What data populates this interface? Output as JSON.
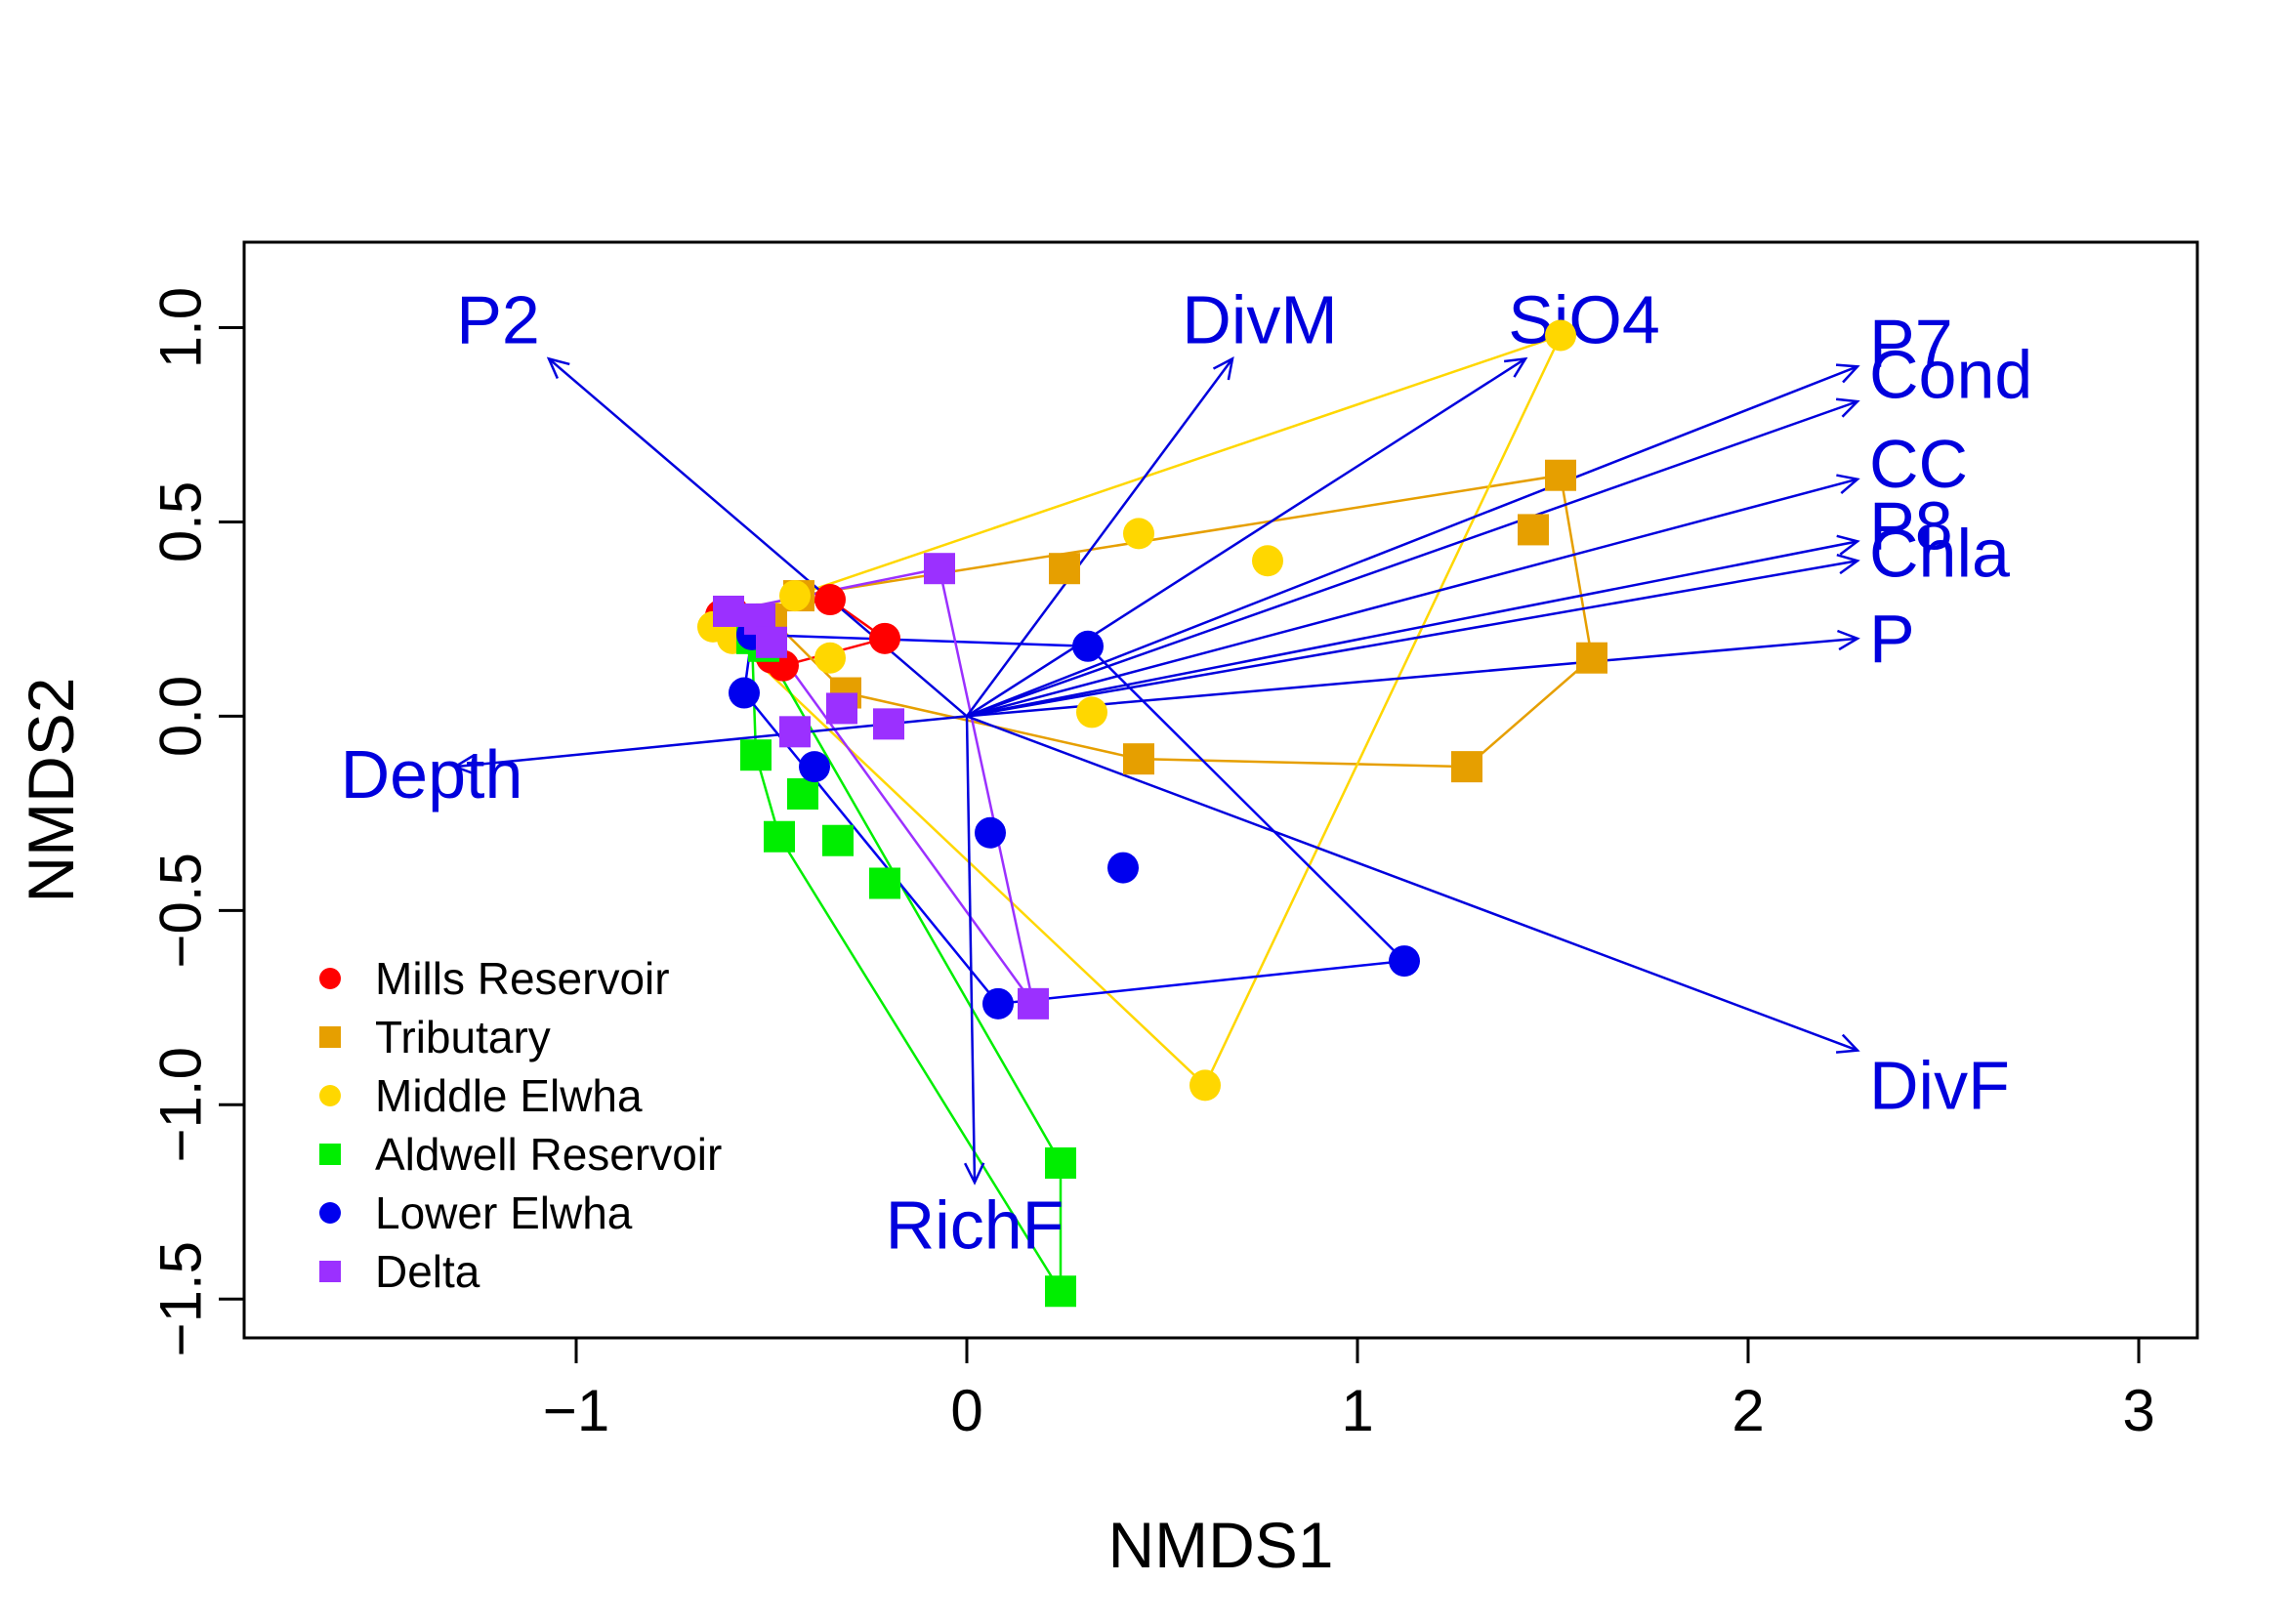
{
  "chart_data": {
    "type": "scatter",
    "title": "",
    "xlabel": "NMDS1",
    "ylabel": "NMDS2",
    "xlim": [
      -1.85,
      3.15
    ],
    "ylim": [
      -1.6,
      1.22
    ],
    "xticks": [
      -1,
      0,
      1,
      2,
      3
    ],
    "yticks": [
      -1.5,
      -1.0,
      -0.5,
      0.0,
      0.5,
      1.0
    ],
    "xtick_labels": [
      "−1",
      "0",
      "1",
      "2",
      "3"
    ],
    "ytick_labels": [
      "−1.5",
      "−1.0",
      "−0.5",
      "0.0",
      "0.5",
      "1.0"
    ],
    "grid": false,
    "legend_position": "bottom-left",
    "centroid": [
      0,
      0
    ],
    "series": [
      {
        "name": "Mills Reservoir",
        "color": "#ff0000",
        "marker": "circle",
        "points": [
          [
            -0.63,
            0.26
          ],
          [
            -0.61,
            0.22
          ],
          [
            -0.58,
            0.24
          ],
          [
            -0.5,
            0.15
          ],
          [
            -0.47,
            0.13
          ],
          [
            -0.35,
            0.3
          ],
          [
            -0.21,
            0.2
          ],
          [
            -0.6,
            0.27
          ]
        ],
        "hull": [
          [
            -0.63,
            0.26
          ],
          [
            -0.35,
            0.3
          ],
          [
            -0.21,
            0.2
          ],
          [
            -0.47,
            0.13
          ],
          [
            -0.61,
            0.22
          ]
        ]
      },
      {
        "name": "Tributary",
        "color": "#e69f00",
        "marker": "square",
        "points": [
          [
            -0.43,
            0.31
          ],
          [
            -0.31,
            0.06
          ],
          [
            0.25,
            0.38
          ],
          [
            0.44,
            -0.11
          ],
          [
            1.28,
            -0.13
          ],
          [
            1.45,
            0.48
          ],
          [
            1.52,
            0.62
          ],
          [
            1.6,
            0.15
          ],
          [
            -0.5,
            0.25
          ]
        ],
        "hull": [
          [
            -0.5,
            0.25
          ],
          [
            -0.43,
            0.31
          ],
          [
            1.52,
            0.62
          ],
          [
            1.6,
            0.15
          ],
          [
            1.28,
            -0.13
          ],
          [
            0.44,
            -0.11
          ],
          [
            -0.31,
            0.06
          ]
        ]
      },
      {
        "name": "Middle Elwha",
        "color": "#ffd700",
        "marker": "circle",
        "points": [
          [
            -0.65,
            0.23
          ],
          [
            -0.44,
            0.31
          ],
          [
            -0.35,
            0.15
          ],
          [
            0.32,
            0.01
          ],
          [
            0.44,
            0.47
          ],
          [
            0.77,
            0.4
          ],
          [
            1.52,
            0.98
          ],
          [
            0.61,
            -0.95
          ],
          [
            -0.6,
            0.2
          ]
        ],
        "hull": [
          [
            -0.65,
            0.23
          ],
          [
            -0.44,
            0.31
          ],
          [
            1.52,
            0.98
          ],
          [
            0.61,
            -0.95
          ],
          [
            -0.6,
            0.2
          ]
        ]
      },
      {
        "name": "Aldwell Reservoir",
        "color": "#00ee00",
        "marker": "square",
        "points": [
          [
            -0.55,
            0.2
          ],
          [
            -0.52,
            0.18
          ],
          [
            -0.54,
            -0.1
          ],
          [
            -0.42,
            -0.2
          ],
          [
            -0.48,
            -0.31
          ],
          [
            -0.33,
            -0.32
          ],
          [
            -0.21,
            -0.43
          ],
          [
            0.24,
            -1.15
          ],
          [
            0.24,
            -1.48
          ]
        ],
        "hull": [
          [
            -0.55,
            0.2
          ],
          [
            -0.52,
            0.18
          ],
          [
            0.24,
            -1.15
          ],
          [
            0.24,
            -1.48
          ],
          [
            -0.48,
            -0.31
          ],
          [
            -0.54,
            -0.1
          ]
        ]
      },
      {
        "name": "Lower Elwha",
        "color": "#0000ee",
        "marker": "circle",
        "points": [
          [
            -0.57,
            0.06
          ],
          [
            -0.39,
            -0.13
          ],
          [
            0.06,
            -0.3
          ],
          [
            0.31,
            0.18
          ],
          [
            0.4,
            -0.39
          ],
          [
            1.12,
            -0.63
          ],
          [
            0.08,
            -0.74
          ],
          [
            -0.55,
            0.21
          ]
        ],
        "hull": [
          [
            -0.55,
            0.21
          ],
          [
            0.31,
            0.18
          ],
          [
            1.12,
            -0.63
          ],
          [
            0.08,
            -0.74
          ],
          [
            -0.57,
            0.06
          ]
        ]
      },
      {
        "name": "Delta",
        "color": "#9b30ff",
        "marker": "square",
        "points": [
          [
            -0.61,
            0.27
          ],
          [
            -0.53,
            0.25
          ],
          [
            -0.44,
            -0.04
          ],
          [
            -0.32,
            0.02
          ],
          [
            -0.2,
            -0.02
          ],
          [
            -0.07,
            0.38
          ],
          [
            0.17,
            -0.74
          ],
          [
            -0.5,
            0.19
          ]
        ],
        "hull": [
          [
            -0.61,
            0.27
          ],
          [
            -0.07,
            0.38
          ],
          [
            0.17,
            -0.74
          ],
          [
            -0.5,
            0.19
          ]
        ]
      }
    ],
    "vectors": {
      "color": "#0000dd",
      "items": [
        {
          "label": "P2",
          "tip": [
            -1.07,
            0.92
          ],
          "label_pos": [
            -1.2,
            1.02
          ]
        },
        {
          "label": "DivM",
          "tip": [
            0.68,
            0.92
          ],
          "label_pos": [
            0.75,
            1.02
          ]
        },
        {
          "label": "SiO4",
          "tip": [
            1.43,
            0.92
          ],
          "label_pos": [
            1.58,
            1.02
          ]
        },
        {
          "label": "P7",
          "tip": [
            2.28,
            0.9
          ],
          "label_pos": [
            2.31,
            0.96
          ]
        },
        {
          "label": "Cond",
          "tip": [
            2.28,
            0.81
          ],
          "label_pos": [
            2.31,
            0.88
          ]
        },
        {
          "label": "CC",
          "tip": [
            2.28,
            0.61
          ],
          "label_pos": [
            2.31,
            0.65
          ]
        },
        {
          "label": "P8",
          "tip": [
            2.28,
            0.45
          ],
          "label_pos": [
            2.31,
            0.49
          ]
        },
        {
          "label": "Chla",
          "tip": [
            2.28,
            0.4
          ],
          "label_pos": [
            2.31,
            0.42
          ]
        },
        {
          "label": "P",
          "tip": [
            2.28,
            0.2
          ],
          "label_pos": [
            2.31,
            0.2
          ]
        },
        {
          "label": "Depth",
          "tip": [
            -1.31,
            -0.13
          ],
          "label_pos": [
            -1.37,
            -0.15
          ]
        },
        {
          "label": "DivF",
          "tip": [
            2.28,
            -0.86
          ],
          "label_pos": [
            2.31,
            -0.95
          ]
        },
        {
          "label": "RichF",
          "tip": [
            0.02,
            -1.2
          ],
          "label_pos": [
            0.02,
            -1.31
          ]
        }
      ]
    }
  }
}
